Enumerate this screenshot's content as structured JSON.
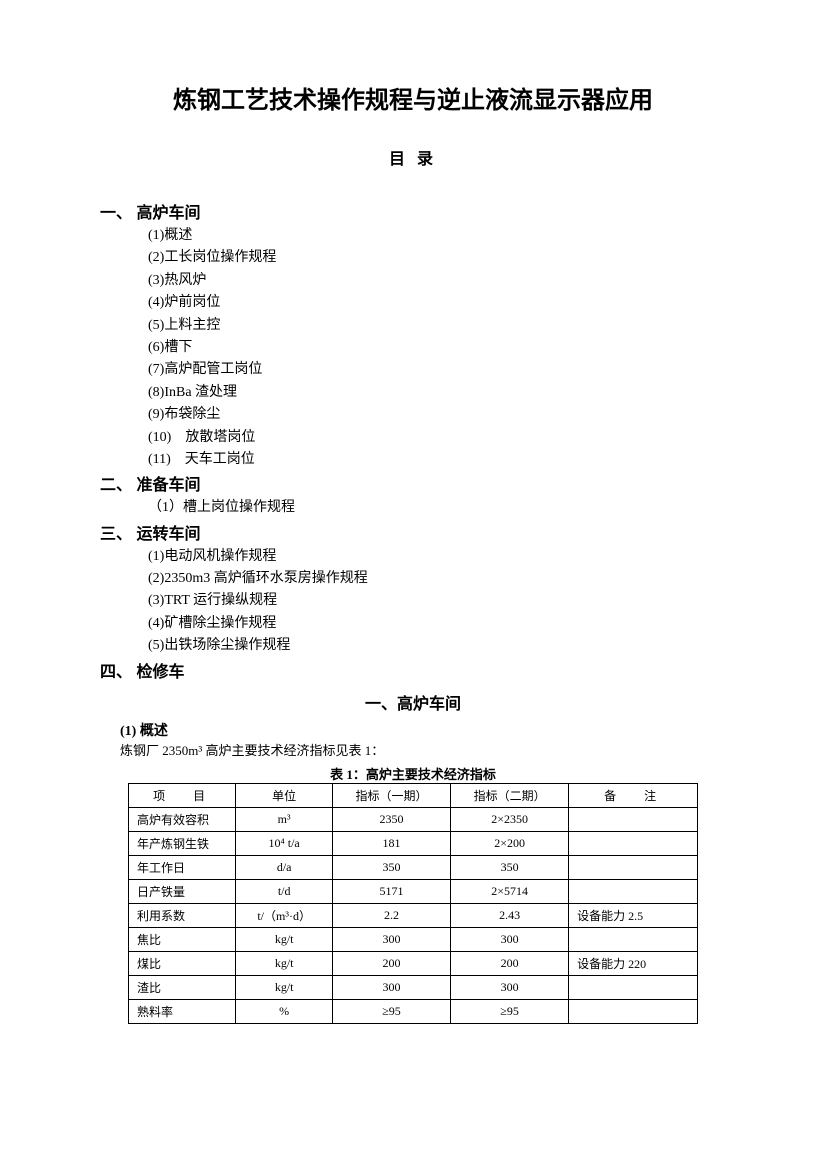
{
  "doc": {
    "title": "炼钢工艺技术操作规程与逆止液流显示器应用",
    "toc_label": "目 录",
    "sections": [
      {
        "num": "一、",
        "title": "高炉车间",
        "items": [
          "(1)概述",
          "(2)工长岗位操作规程",
          "(3)热风炉",
          "(4)炉前岗位",
          "(5)上料主控",
          "(6)槽下",
          "(7)高炉配管工岗位",
          "(8)InBa 渣处理",
          "(9)布袋除尘",
          "(10)　放散塔岗位",
          "(11)　天车工岗位"
        ]
      },
      {
        "num": "二、",
        "title": "准备车间",
        "items": [
          "（1）槽上岗位操作规程"
        ]
      },
      {
        "num": "三、",
        "title": "运转车间",
        "items": [
          "(1)电动风机操作规程",
          "(2)2350m3 高炉循环水泵房操作规程",
          "(3)TRT 运行操纵规程",
          "(4)矿槽除尘操作规程",
          "(5)出铁场除尘操作规程"
        ]
      },
      {
        "num": "四、",
        "title": "检修车",
        "items": []
      }
    ],
    "section1_title": "一、高炉车间",
    "sub1_title": "(1)  概述",
    "body1": "炼钢厂 2350m³ 高炉主要技术经济指标见表 1：",
    "table_caption": "表 1：高炉主要技术经济指标",
    "table": {
      "headers": [
        "项　目",
        "单位",
        "指标（一期）",
        "指标（二期）",
        "备　注"
      ],
      "rows": [
        [
          "高炉有效容积",
          "m³",
          "2350",
          "2×2350",
          ""
        ],
        [
          "年产炼钢生铁",
          "10⁴ t/a",
          "181",
          "2×200",
          ""
        ],
        [
          "年工作日",
          "d/a",
          "350",
          "350",
          ""
        ],
        [
          "日产铁量",
          "t/d",
          "5171",
          "2×5714",
          ""
        ],
        [
          "利用系数",
          "t/（m³·d）",
          "2.2",
          "2.43",
          "设备能力 2.5"
        ],
        [
          "焦比",
          "kg/t",
          "300",
          "300",
          ""
        ],
        [
          "煤比",
          "kg/t",
          "200",
          "200",
          "设备能力 220"
        ],
        [
          "渣比",
          "kg/t",
          "300",
          "300",
          ""
        ],
        [
          "熟料率",
          "%",
          "≥95",
          "≥95",
          ""
        ]
      ]
    }
  },
  "style": {
    "background_color": "#ffffff",
    "text_color": "#000000",
    "border_color": "#000000",
    "title_fontsize": 24,
    "body_fontsize": 13,
    "table_fontsize": 12
  }
}
